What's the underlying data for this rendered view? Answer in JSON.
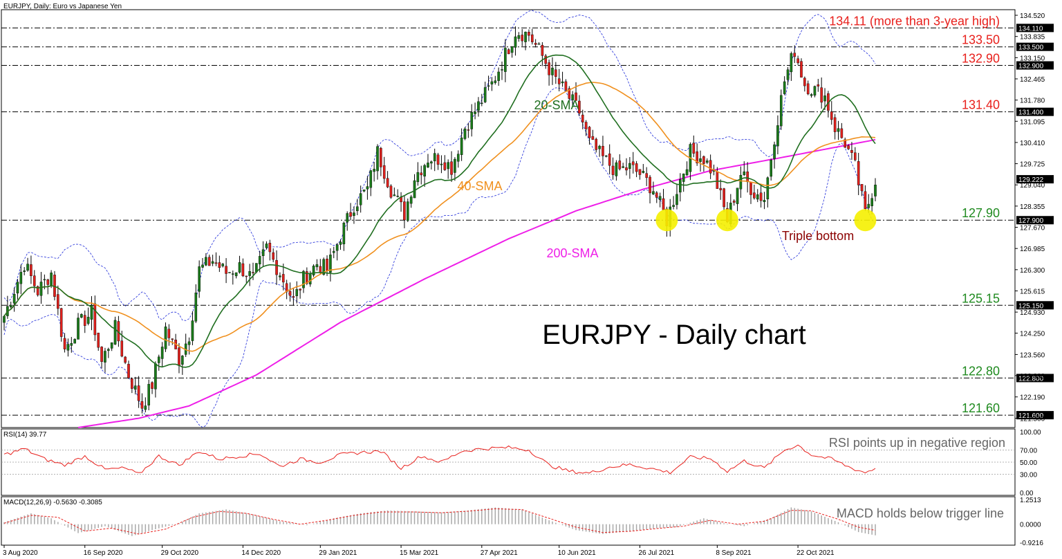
{
  "chart_data": {
    "type": "candlestick",
    "header": "EURJPY, Daily:  Euro vs Japanese Yen",
    "title": "EURJPY - Daily chart",
    "x_ticks": [
      "3 Aug 2020",
      "16 Sep 2020",
      "29 Oct 2020",
      "14 Dec 2020",
      "29 Jan 2021",
      "15 Mar 2021",
      "27 Apr 2021",
      "10 Jun 2021",
      "26 Jul 2021",
      "8 Sep 2021",
      "22 Oct 2021"
    ],
    "main_panel": {
      "ylim": [
        121.2,
        134.7
      ],
      "y_ticks": [
        134.52,
        133.835,
        133.15,
        132.465,
        131.78,
        131.095,
        130.41,
        129.725,
        129.04,
        128.355,
        127.67,
        126.985,
        126.3,
        125.615,
        124.93,
        124.25,
        123.56,
        122.88,
        122.19,
        121.5
      ],
      "y_tick_labels": [
        "134.520",
        "133.835",
        "133.150",
        "132.465",
        "131.780",
        "131.095",
        "130.410",
        "129.725",
        "129.040",
        "128.355",
        "127.670",
        "126.985",
        "126.300",
        "125.615",
        "124.930",
        "124.250",
        "123.560",
        "122.880",
        "122.190",
        "121.500"
      ],
      "levels": [
        {
          "value": 134.11,
          "box": "134.110",
          "label": "134.11 (more than 3-year high)",
          "color": "#e8201c"
        },
        {
          "value": 133.5,
          "box": "133.500",
          "label": "133.50",
          "color": "#e8201c"
        },
        {
          "value": 132.9,
          "box": "132.900",
          "label": "132.90",
          "color": "#e8201c"
        },
        {
          "value": 131.4,
          "box": "131.400",
          "label": "131.40",
          "color": "#e8201c"
        },
        {
          "value": 127.9,
          "box": "127.900",
          "label": "127.90",
          "color": "#1f8a1f"
        },
        {
          "value": 125.15,
          "box": "125.150",
          "label": "125.15",
          "color": "#1f8a1f"
        },
        {
          "value": 122.8,
          "box": "122.800",
          "label": "122.80",
          "color": "#1f8a1f"
        },
        {
          "value": 121.6,
          "box": "121.600",
          "label": "121.60",
          "color": "#1f8a1f"
        }
      ],
      "current_price": {
        "value": 129.222,
        "box": "129.222"
      },
      "close_path": [
        [
          0,
          124.8
        ],
        [
          6,
          126.5
        ],
        [
          10,
          125.6
        ],
        [
          14,
          126.2
        ],
        [
          18,
          123.7
        ],
        [
          22,
          124.5
        ],
        [
          26,
          124.9
        ],
        [
          29,
          123.3
        ],
        [
          33,
          124.4
        ],
        [
          37,
          122.9
        ],
        [
          41,
          121.9
        ],
        [
          44,
          122.6
        ],
        [
          48,
          124.4
        ],
        [
          52,
          123.4
        ],
        [
          55,
          124.2
        ],
        [
          58,
          126.3
        ],
        [
          62,
          126.6
        ],
        [
          66,
          126.2
        ],
        [
          70,
          126.4
        ],
        [
          74,
          126.0
        ],
        [
          78,
          127.0
        ],
        [
          82,
          126.2
        ],
        [
          86,
          125.3
        ],
        [
          89,
          126.0
        ],
        [
          93,
          126.5
        ],
        [
          96,
          126.3
        ],
        [
          100,
          127.4
        ],
        [
          104,
          128.4
        ],
        [
          108,
          128.9
        ],
        [
          111,
          130.1
        ],
        [
          115,
          128.9
        ],
        [
          119,
          128.1
        ],
        [
          122,
          129.3
        ],
        [
          126,
          129.9
        ],
        [
          130,
          129.9
        ],
        [
          133,
          129.6
        ],
        [
          137,
          130.9
        ],
        [
          141,
          131.6
        ],
        [
          145,
          132.3
        ],
        [
          148,
          133.0
        ],
        [
          152,
          134.0
        ],
        [
          156,
          133.9
        ],
        [
          160,
          133.2
        ],
        [
          163,
          132.6
        ],
        [
          167,
          132.0
        ],
        [
          171,
          131.4
        ],
        [
          174,
          130.4
        ],
        [
          178,
          129.9
        ],
        [
          182,
          129.5
        ],
        [
          186,
          129.6
        ],
        [
          189,
          129.4
        ],
        [
          193,
          128.9
        ],
        [
          197,
          127.9
        ],
        [
          200,
          128.9
        ],
        [
          204,
          130.1
        ],
        [
          208,
          129.9
        ],
        [
          211,
          129.4
        ],
        [
          215,
          127.9
        ],
        [
          219,
          129.4
        ],
        [
          223,
          128.8
        ],
        [
          226,
          128.6
        ],
        [
          229,
          130.6
        ],
        [
          232,
          132.4
        ],
        [
          235,
          133.4
        ],
        [
          238,
          132.3
        ],
        [
          241,
          132.1
        ],
        [
          244,
          131.9
        ],
        [
          247,
          130.9
        ],
        [
          250,
          130.4
        ],
        [
          253,
          129.6
        ],
        [
          256,
          128.1
        ],
        [
          259,
          129.2
        ]
      ],
      "lines": [
        {
          "name": "20-SMA",
          "label": "20-SMA",
          "color": "#1f6e1f"
        },
        {
          "name": "40-SMA",
          "label": "40-SMA",
          "color": "#f0901e"
        },
        {
          "name": "200-SMA",
          "label": "200-SMA",
          "color": "#ee1ee8"
        },
        {
          "name": "Bollinger Bands",
          "color": "#1e2bd9"
        }
      ],
      "sma200_path": [
        [
          22,
          121.2
        ],
        [
          40,
          121.5
        ],
        [
          55,
          121.9
        ],
        [
          75,
          122.9
        ],
        [
          100,
          124.6
        ],
        [
          125,
          126.0
        ],
        [
          150,
          127.3
        ],
        [
          170,
          128.2
        ],
        [
          190,
          128.9
        ],
        [
          210,
          129.5
        ],
        [
          230,
          129.9
        ],
        [
          259,
          130.5
        ]
      ],
      "annotations": [
        {
          "text": "Triple bottom",
          "color": "#8b0000"
        },
        {
          "text": "20-SMA",
          "color": "#1f6e1f"
        },
        {
          "text": "40-SMA",
          "color": "#f0901e"
        },
        {
          "text": "200-SMA",
          "color": "#ee1ee8"
        }
      ],
      "triple_bottom_markers": [
        {
          "bar": 197,
          "value": 127.9
        },
        {
          "bar": 215,
          "value": 127.9
        },
        {
          "bar": 256,
          "value": 127.9
        }
      ]
    },
    "rsi_panel": {
      "header": "RSI(14) 39.77",
      "ylim": [
        0,
        100
      ],
      "y_ticks": [
        100,
        70,
        50,
        30,
        0
      ],
      "y_tick_labels": [
        "100.00",
        "70.00",
        "50.00",
        "30.00",
        "0.00"
      ],
      "annotation": "RSI points up in negative region",
      "color": "#e8201c",
      "path": [
        [
          0,
          62
        ],
        [
          6,
          72
        ],
        [
          12,
          55
        ],
        [
          18,
          45
        ],
        [
          24,
          60
        ],
        [
          30,
          38
        ],
        [
          36,
          40
        ],
        [
          40,
          30
        ],
        [
          46,
          60
        ],
        [
          52,
          45
        ],
        [
          58,
          68
        ],
        [
          64,
          55
        ],
        [
          70,
          60
        ],
        [
          76,
          64
        ],
        [
          82,
          43
        ],
        [
          88,
          55
        ],
        [
          94,
          50
        ],
        [
          100,
          62
        ],
        [
          106,
          66
        ],
        [
          112,
          68
        ],
        [
          118,
          40
        ],
        [
          124,
          60
        ],
        [
          130,
          50
        ],
        [
          136,
          68
        ],
        [
          142,
          72
        ],
        [
          150,
          74
        ],
        [
          156,
          70
        ],
        [
          162,
          45
        ],
        [
          168,
          35
        ],
        [
          174,
          32
        ],
        [
          180,
          42
        ],
        [
          186,
          46
        ],
        [
          192,
          40
        ],
        [
          198,
          33
        ],
        [
          204,
          58
        ],
        [
          210,
          56
        ],
        [
          215,
          35
        ],
        [
          220,
          52
        ],
        [
          226,
          40
        ],
        [
          232,
          70
        ],
        [
          236,
          78
        ],
        [
          240,
          62
        ],
        [
          246,
          55
        ],
        [
          252,
          40
        ],
        [
          256,
          33
        ],
        [
          259,
          39.77
        ]
      ]
    },
    "macd_panel": {
      "header": "MACD(12,26,9) -0.5630 -0.3085",
      "ylim": [
        -0.9216,
        1.2513
      ],
      "y_ticks": [
        1.2513,
        0.0,
        -0.9216
      ],
      "y_tick_labels": [
        "1.2513",
        "0.0000",
        "-0.9216"
      ],
      "annotation": "MACD holds below trigger line",
      "histogram_color": "#a8a8a8",
      "signal_color": "#e8201c",
      "hist_path": [
        [
          0,
          0.1
        ],
        [
          8,
          0.55
        ],
        [
          14,
          0.3
        ],
        [
          22,
          -0.45
        ],
        [
          30,
          -0.1
        ],
        [
          38,
          -0.6
        ],
        [
          44,
          -0.3
        ],
        [
          52,
          0.05
        ],
        [
          58,
          0.55
        ],
        [
          66,
          0.75
        ],
        [
          74,
          0.5
        ],
        [
          82,
          0.15
        ],
        [
          90,
          -0.05
        ],
        [
          98,
          0.3
        ],
        [
          106,
          0.55
        ],
        [
          114,
          0.7
        ],
        [
          122,
          0.65
        ],
        [
          130,
          0.6
        ],
        [
          138,
          0.7
        ],
        [
          146,
          0.85
        ],
        [
          154,
          0.75
        ],
        [
          162,
          0.2
        ],
        [
          170,
          -0.3
        ],
        [
          178,
          -0.5
        ],
        [
          186,
          -0.35
        ],
        [
          194,
          -0.2
        ],
        [
          200,
          -0.15
        ],
        [
          208,
          0.3
        ],
        [
          214,
          0.05
        ],
        [
          220,
          -0.1
        ],
        [
          228,
          0.3
        ],
        [
          234,
          0.85
        ],
        [
          240,
          0.65
        ],
        [
          248,
          0.1
        ],
        [
          254,
          -0.4
        ],
        [
          259,
          -0.563
        ]
      ],
      "signal_path": [
        [
          0,
          0.05
        ],
        [
          8,
          0.45
        ],
        [
          16,
          0.35
        ],
        [
          24,
          -0.35
        ],
        [
          32,
          -0.2
        ],
        [
          40,
          -0.5
        ],
        [
          48,
          -0.25
        ],
        [
          56,
          0.35
        ],
        [
          64,
          0.65
        ],
        [
          72,
          0.55
        ],
        [
          80,
          0.25
        ],
        [
          88,
          0.0
        ],
        [
          96,
          0.2
        ],
        [
          104,
          0.45
        ],
        [
          112,
          0.62
        ],
        [
          122,
          0.62
        ],
        [
          130,
          0.58
        ],
        [
          138,
          0.66
        ],
        [
          146,
          0.78
        ],
        [
          154,
          0.74
        ],
        [
          162,
          0.3
        ],
        [
          170,
          -0.15
        ],
        [
          178,
          -0.42
        ],
        [
          186,
          -0.36
        ],
        [
          194,
          -0.22
        ],
        [
          202,
          -0.1
        ],
        [
          210,
          0.2
        ],
        [
          218,
          0.0
        ],
        [
          226,
          0.15
        ],
        [
          234,
          0.7
        ],
        [
          240,
          0.68
        ],
        [
          248,
          0.25
        ],
        [
          254,
          -0.15
        ],
        [
          259,
          -0.3085
        ]
      ]
    }
  }
}
